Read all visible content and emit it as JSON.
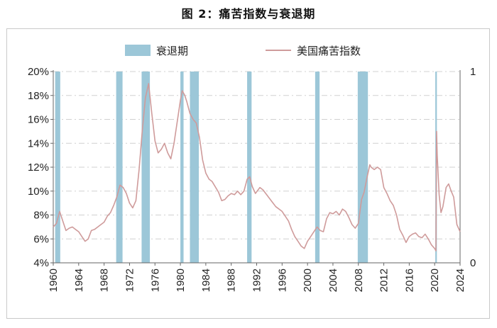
{
  "figure_title": "图 2：痛苦指数与衰退期",
  "chart_data": {
    "type": "line",
    "title": "图 2：痛苦指数与衰退期",
    "xlabel": "",
    "ylabel": "",
    "xlim": [
      1960,
      2024
    ],
    "ylim": [
      0.04,
      0.2
    ],
    "y2lim": [
      0,
      1
    ],
    "grid": "horizontal-dashed",
    "legend_position": "top",
    "x_ticks": [
      "1960",
      "1964",
      "1968",
      "1972",
      "1976",
      "1980",
      "1984",
      "1988",
      "1992",
      "1996",
      "2000",
      "2004",
      "2008",
      "2012",
      "2016",
      "2020",
      "2024"
    ],
    "y_ticks": [
      "4%",
      "6%",
      "8%",
      "10%",
      "12%",
      "14%",
      "16%",
      "18%",
      "20%"
    ],
    "y2_ticks": [
      "0",
      "1"
    ],
    "recessions": {
      "name": "衰退期",
      "color": "#9cc7d8",
      "periods": [
        [
          1960.3,
          1961.1
        ],
        [
          1969.9,
          1970.9
        ],
        [
          1973.9,
          1975.2
        ],
        [
          1980.0,
          1980.5
        ],
        [
          1981.5,
          1982.9
        ],
        [
          1990.5,
          1991.2
        ],
        [
          2001.2,
          2001.9
        ],
        [
          2007.9,
          2009.5
        ],
        [
          2020.1,
          2020.35
        ]
      ]
    },
    "series": [
      {
        "name": "美国痛苦指数",
        "color": "#cf9b9b",
        "x": [
          1960.0,
          1960.5,
          1961.0,
          1961.5,
          1962.0,
          1962.5,
          1963.0,
          1963.5,
          1964.0,
          1964.5,
          1965.0,
          1965.5,
          1966.0,
          1966.5,
          1967.0,
          1967.5,
          1968.0,
          1968.5,
          1969.0,
          1969.5,
          1970.0,
          1970.5,
          1971.0,
          1971.5,
          1972.0,
          1972.5,
          1973.0,
          1973.5,
          1974.0,
          1974.5,
          1975.0,
          1975.5,
          1976.0,
          1976.5,
          1977.0,
          1977.5,
          1978.0,
          1978.5,
          1979.0,
          1979.5,
          1980.0,
          1980.3,
          1980.7,
          1981.0,
          1981.5,
          1982.0,
          1982.5,
          1983.0,
          1983.5,
          1984.0,
          1984.5,
          1985.0,
          1986.0,
          1986.5,
          1987.0,
          1987.5,
          1988.0,
          1988.5,
          1989.0,
          1989.5,
          1990.0,
          1990.5,
          1990.9,
          1991.3,
          1991.8,
          1992.5,
          1993.0,
          1994.0,
          1995.0,
          1996.0,
          1997.0,
          1997.5,
          1998.0,
          1998.5,
          1999.0,
          1999.5,
          2000.0,
          2000.5,
          2001.0,
          2001.5,
          2002.0,
          2002.5,
          2003.0,
          2003.5,
          2004.0,
          2004.5,
          2005.0,
          2005.5,
          2006.0,
          2006.5,
          2007.0,
          2007.5,
          2008.0,
          2008.5,
          2008.9,
          2009.3,
          2009.8,
          2010.0,
          2010.5,
          2011.0,
          2011.5,
          2012.0,
          2012.5,
          2013.0,
          2013.5,
          2014.0,
          2014.5,
          2015.0,
          2015.5,
          2016.0,
          2016.5,
          2017.0,
          2017.5,
          2018.0,
          2018.5,
          2019.0,
          2019.5,
          2020.0,
          2020.2,
          2020.3,
          2020.4,
          2020.7,
          2021.0,
          2021.3,
          2021.8,
          2022.2,
          2022.6,
          2023.0,
          2023.5,
          2024.0
        ],
        "values": [
          0.07,
          0.073,
          0.083,
          0.075,
          0.067,
          0.069,
          0.07,
          0.068,
          0.066,
          0.062,
          0.058,
          0.06,
          0.067,
          0.068,
          0.07,
          0.072,
          0.074,
          0.079,
          0.082,
          0.088,
          0.095,
          0.105,
          0.103,
          0.098,
          0.09,
          0.086,
          0.092,
          0.118,
          0.15,
          0.178,
          0.19,
          0.165,
          0.142,
          0.132,
          0.135,
          0.14,
          0.132,
          0.127,
          0.14,
          0.158,
          0.176,
          0.184,
          0.18,
          0.175,
          0.165,
          0.16,
          0.157,
          0.145,
          0.126,
          0.115,
          0.11,
          0.108,
          0.099,
          0.092,
          0.093,
          0.096,
          0.098,
          0.097,
          0.1,
          0.097,
          0.1,
          0.11,
          0.112,
          0.104,
          0.098,
          0.103,
          0.101,
          0.094,
          0.087,
          0.083,
          0.075,
          0.068,
          0.062,
          0.058,
          0.054,
          0.052,
          0.058,
          0.062,
          0.066,
          0.07,
          0.067,
          0.066,
          0.077,
          0.082,
          0.081,
          0.083,
          0.08,
          0.085,
          0.083,
          0.078,
          0.072,
          0.069,
          0.073,
          0.093,
          0.099,
          0.11,
          0.122,
          0.12,
          0.118,
          0.12,
          0.118,
          0.103,
          0.098,
          0.092,
          0.088,
          0.08,
          0.068,
          0.063,
          0.057,
          0.062,
          0.064,
          0.065,
          0.062,
          0.061,
          0.064,
          0.06,
          0.055,
          0.052,
          0.05,
          0.15,
          0.13,
          0.097,
          0.082,
          0.087,
          0.103,
          0.106,
          0.1,
          0.095,
          0.072,
          0.066
        ]
      }
    ]
  }
}
